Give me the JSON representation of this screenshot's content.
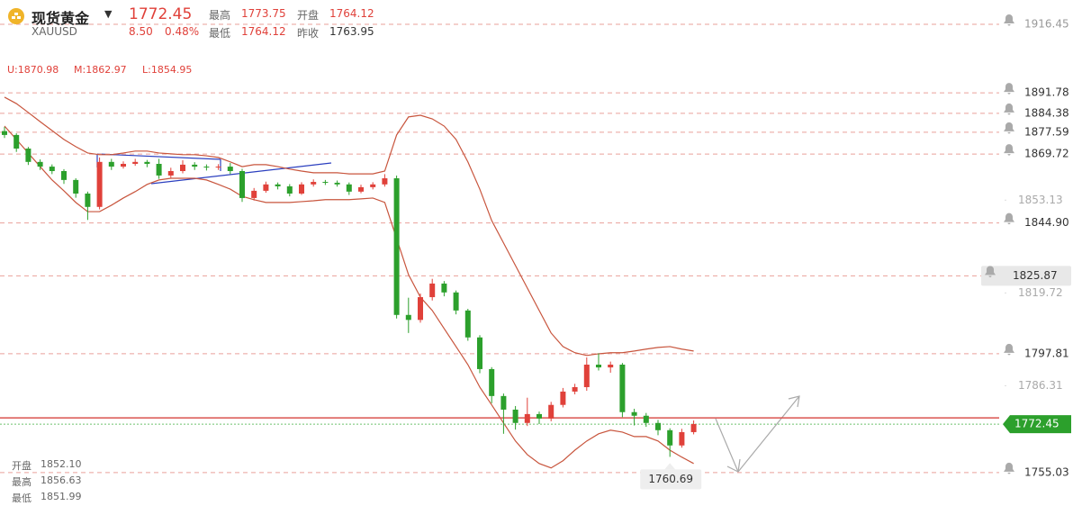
{
  "header": {
    "name": "现货黄金",
    "symbol": "XAUUSD",
    "last": "1772.45",
    "change": "8.50",
    "change_pct": "0.48%",
    "high_label": "最高",
    "high": "1773.75",
    "open_label": "开盘",
    "open": "1764.12",
    "low_label": "最低",
    "low": "1764.12",
    "prev_label": "昨收",
    "prev": "1763.95"
  },
  "indicator": {
    "upper": "U:1870.98",
    "middle": "M:1862.97",
    "lower": "L:1854.95"
  },
  "info": {
    "open_label": "开盘",
    "open": "1852.10",
    "high_label": "最高",
    "high": "1856.63",
    "low_label": "最低",
    "low": "1851.99"
  },
  "chart_data": {
    "type": "candlestick",
    "ylim": [
      1743,
      1925.2
    ],
    "yticks": [
      1853.13,
      1819.72,
      1786.31
    ],
    "alert_lines": [
      1916.45,
      1891.78,
      1884.38,
      1877.59,
      1869.72,
      {
        "value": 1844.9,
        "label": "1844.90"
      },
      1825.87,
      1797.81,
      1755.03
    ],
    "last_price": 1772.45,
    "low_marker": 1760.69,
    "up_color": "#e0413a",
    "down_color": "#2ca02c",
    "band_color": "#c8553d",
    "open": [
      1878.0,
      1876.6,
      1871.7,
      1866.9,
      1865.2,
      1863.6,
      1860.4,
      1855.5,
      1850.7,
      1866.9,
      1865.2,
      1866.2,
      1866.9,
      1866.2,
      1862.0,
      1863.6,
      1865.9,
      1865.2,
      1864.9,
      1865.2,
      1863.6,
      1853.9,
      1856.5,
      1858.8,
      1858.1,
      1855.5,
      1858.8,
      1859.7,
      1859.4,
      1858.8,
      1856.2,
      1857.8,
      1858.8,
      1861.0,
      1811.8,
      1810.0,
      1818.2,
      1823.1,
      1819.9,
      1813.4,
      1803.7,
      1792.3,
      1782.6,
      1777.7,
      1772.9,
      1776.1,
      1774.5,
      1779.4,
      1784.2,
      1785.8,
      1793.9,
      1792.9,
      1793.9,
      1776.8,
      1775.5,
      1772.9,
      1770.3,
      1764.8,
      1769.6
    ],
    "high": [
      1879.5,
      1877.2,
      1872.3,
      1867.8,
      1866.0,
      1864.3,
      1861.0,
      1856.2,
      1868.5,
      1868.0,
      1867.1,
      1868.0,
      1867.6,
      1868.0,
      1864.8,
      1867.5,
      1866.8,
      1866.0,
      1866.1,
      1866.5,
      1864.4,
      1857.5,
      1859.8,
      1859.5,
      1858.9,
      1859.6,
      1860.6,
      1860.4,
      1860.2,
      1859.5,
      1858.7,
      1859.6,
      1862.5,
      1862.0,
      1818.0,
      1819.5,
      1824.8,
      1824.0,
      1820.6,
      1814.0,
      1804.5,
      1793.0,
      1783.5,
      1779.0,
      1782.0,
      1777.0,
      1780.5,
      1785.5,
      1787.0,
      1796.5,
      1798.0,
      1795.0,
      1794.5,
      1778.0,
      1776.5,
      1774.0,
      1771.0,
      1770.8,
      1773.8
    ],
    "low": [
      1875.5,
      1870.5,
      1865.8,
      1864.0,
      1862.5,
      1859.0,
      1854.0,
      1846.0,
      1849.8,
      1864.0,
      1864.5,
      1865.5,
      1865.0,
      1860.8,
      1861.2,
      1862.8,
      1864.0,
      1863.8,
      1864.0,
      1862.5,
      1852.5,
      1853.0,
      1855.8,
      1857.0,
      1854.5,
      1855.0,
      1858.0,
      1858.6,
      1858.0,
      1855.0,
      1855.6,
      1857.0,
      1858.0,
      1810.5,
      1805.3,
      1809.0,
      1817.0,
      1818.5,
      1812.0,
      1802.5,
      1790.8,
      1780.0,
      1769.0,
      1770.5,
      1771.8,
      1772.5,
      1773.5,
      1778.5,
      1783.2,
      1784.5,
      1791.8,
      1791.0,
      1775.0,
      1772.0,
      1771.5,
      1768.5,
      1760.69,
      1764.0,
      1768.8
    ],
    "close": [
      1876.6,
      1871.7,
      1866.9,
      1865.2,
      1863.6,
      1860.4,
      1855.5,
      1850.7,
      1866.9,
      1865.2,
      1866.2,
      1866.9,
      1866.2,
      1862.0,
      1863.6,
      1865.9,
      1865.2,
      1864.9,
      1865.2,
      1863.6,
      1853.9,
      1856.5,
      1858.8,
      1858.1,
      1855.5,
      1858.8,
      1859.7,
      1859.4,
      1858.8,
      1856.2,
      1857.8,
      1858.8,
      1861.0,
      1811.8,
      1810.0,
      1818.2,
      1823.1,
      1819.9,
      1813.4,
      1803.7,
      1792.3,
      1782.6,
      1777.7,
      1772.9,
      1776.1,
      1774.5,
      1779.4,
      1784.2,
      1785.8,
      1793.9,
      1792.9,
      1793.9,
      1776.8,
      1775.5,
      1772.9,
      1770.3,
      1764.8,
      1769.6,
      1772.5
    ],
    "band_upper": [
      1890.2,
      1887.9,
      1884.7,
      1881.4,
      1878.2,
      1875.0,
      1872.4,
      1870.1,
      1869.5,
      1869.5,
      1870.1,
      1870.8,
      1870.8,
      1870.1,
      1869.8,
      1869.5,
      1869.5,
      1869.1,
      1868.5,
      1866.9,
      1865.2,
      1865.9,
      1865.9,
      1865.2,
      1864.3,
      1863.6,
      1863.0,
      1863.0,
      1863.0,
      1862.6,
      1862.6,
      1862.6,
      1863.6,
      1876.6,
      1883.1,
      1883.7,
      1882.4,
      1879.8,
      1875.0,
      1866.9,
      1857.1,
      1845.8,
      1837.7,
      1829.6,
      1821.5,
      1813.4,
      1805.3,
      1800.4,
      1798.2,
      1797.2,
      1797.8,
      1798.2,
      1798.2,
      1798.8,
      1799.5,
      1800.1,
      1800.4,
      1799.5,
      1798.8
    ],
    "band_lower": [
      1879.8,
      1875.0,
      1870.1,
      1865.2,
      1860.4,
      1856.5,
      1852.3,
      1849.0,
      1849.0,
      1851.3,
      1853.9,
      1856.2,
      1858.8,
      1860.4,
      1861.0,
      1861.0,
      1861.0,
      1860.4,
      1858.8,
      1857.1,
      1854.5,
      1853.3,
      1852.3,
      1852.3,
      1852.3,
      1852.6,
      1852.9,
      1853.3,
      1853.3,
      1853.3,
      1853.6,
      1853.9,
      1852.3,
      1839.3,
      1826.3,
      1818.2,
      1813.4,
      1806.9,
      1800.4,
      1793.9,
      1785.8,
      1779.4,
      1772.9,
      1766.4,
      1761.5,
      1758.3,
      1756.7,
      1759.3,
      1763.1,
      1766.4,
      1769.0,
      1770.3,
      1769.6,
      1768.0,
      1768.0,
      1766.4,
      1763.1,
      1760.6,
      1758.3
    ]
  }
}
